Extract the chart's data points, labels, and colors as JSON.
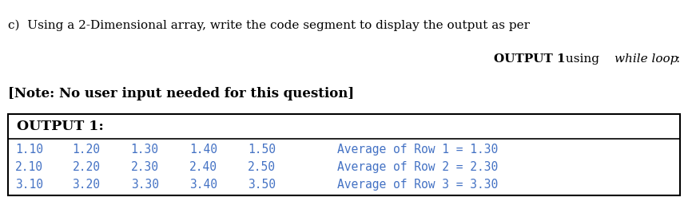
{
  "title_line1": "c)  Using a 2-Dimensional array, write the code segment to display the output as per",
  "title_part1": "OUTPUT 1",
  "title_part2": " using ",
  "title_part3": "while loop",
  "title_part4": ":",
  "note_text": "[Note: No user input needed for this question]",
  "box_header": "OUTPUT 1:",
  "rows": [
    [
      "1.10",
      "1.20",
      "1.30",
      "1.40",
      "1.50",
      "Average of Row 1 = 1.30"
    ],
    [
      "2.10",
      "2.20",
      "2.30",
      "2.40",
      "2.50",
      "Average of Row 2 = 2.30"
    ],
    [
      "3.10",
      "3.20",
      "3.30",
      "3.40",
      "3.50",
      "Average of Row 3 = 3.30"
    ]
  ],
  "bg_color": "#ffffff",
  "text_color_title": "#000000",
  "text_color_blue": "#4472C4",
  "box_border_color": "#000000",
  "title_fontsize": 11.0,
  "note_fontsize": 12.0,
  "header_fontsize": 12.5,
  "data_fontsize": 10.5
}
